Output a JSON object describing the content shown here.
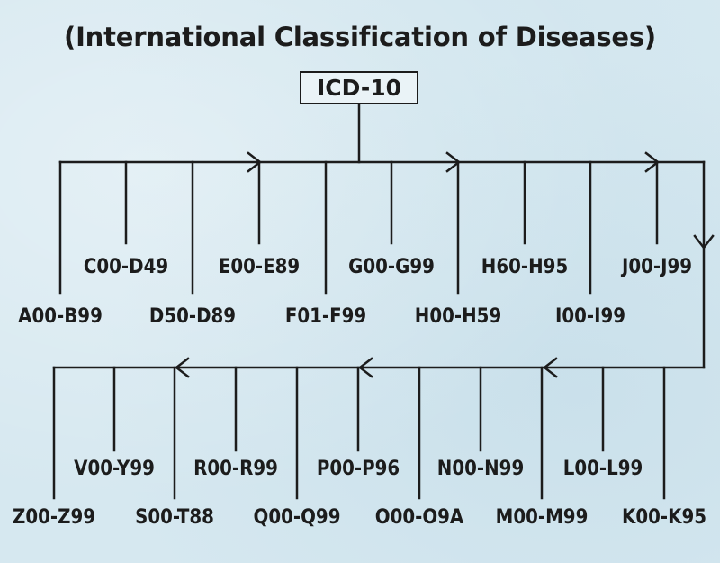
{
  "title": "(International Classification of Diseases)",
  "root": "ICD-10",
  "chapters": [
    "A00-B99",
    "C00-D49",
    "D50-D89",
    "E00-E89",
    "F01-F99",
    "G00-G99",
    "H00-H59",
    "H60-H95",
    "I00-I99",
    "J00-J99",
    "K00-K95",
    "L00-L99",
    "M00-M99",
    "N00-N99",
    "O00-O9A",
    "P00-P96",
    "Q00-Q99",
    "R00-R99",
    "S00-T88",
    "V00-Y99",
    "Z00-Z99"
  ]
}
